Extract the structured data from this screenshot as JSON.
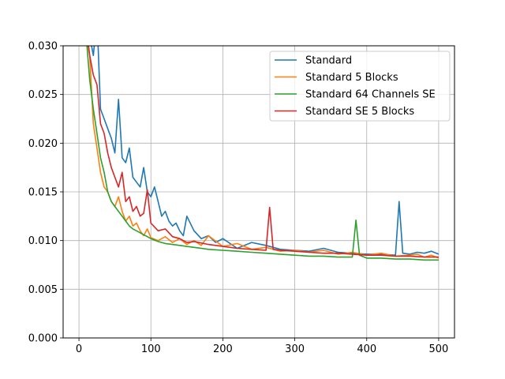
{
  "chart_data": {
    "type": "line",
    "title": "",
    "xlabel": "",
    "ylabel": "",
    "xlim": [
      -22,
      522
    ],
    "ylim": [
      0,
      0.03
    ],
    "xticks": [
      0,
      100,
      200,
      300,
      400,
      500
    ],
    "yticks": [
      0.0,
      0.005,
      0.01,
      0.015,
      0.02,
      0.025,
      0.03
    ],
    "xtick_labels": [
      "0",
      "100",
      "200",
      "300",
      "400",
      "500"
    ],
    "ytick_labels": [
      "0.000",
      "0.005",
      "0.010",
      "0.015",
      "0.020",
      "0.025",
      "0.030"
    ],
    "grid": true,
    "legend_position": "top-right",
    "series": [
      {
        "name": "Standard",
        "color": "#1f77b4",
        "x": [
          10,
          15,
          20,
          25,
          30,
          35,
          40,
          45,
          50,
          55,
          60,
          65,
          70,
          75,
          80,
          85,
          90,
          95,
          100,
          105,
          110,
          115,
          120,
          125,
          130,
          135,
          140,
          145,
          150,
          160,
          170,
          180,
          190,
          200,
          220,
          240,
          260,
          280,
          300,
          320,
          340,
          360,
          380,
          400,
          420,
          440,
          445,
          450,
          460,
          470,
          480,
          490,
          500
        ],
        "values": [
          0.034,
          0.031,
          0.029,
          0.033,
          0.0235,
          0.0225,
          0.0215,
          0.0205,
          0.019,
          0.0245,
          0.0185,
          0.018,
          0.0195,
          0.0165,
          0.016,
          0.0155,
          0.0175,
          0.015,
          0.0145,
          0.0155,
          0.014,
          0.0125,
          0.013,
          0.012,
          0.0115,
          0.0118,
          0.011,
          0.0105,
          0.0125,
          0.011,
          0.0102,
          0.0105,
          0.0098,
          0.0102,
          0.0092,
          0.0098,
          0.0095,
          0.0091,
          0.009,
          0.0089,
          0.0092,
          0.0088,
          0.0087,
          0.0086,
          0.0086,
          0.0085,
          0.014,
          0.0087,
          0.0086,
          0.0088,
          0.0087,
          0.0089,
          0.0086
        ]
      },
      {
        "name": "Standard 5 Blocks",
        "color": "#ff7f0e",
        "x": [
          10,
          15,
          20,
          25,
          30,
          35,
          40,
          45,
          50,
          55,
          60,
          65,
          70,
          75,
          80,
          85,
          90,
          95,
          100,
          110,
          120,
          130,
          140,
          150,
          160,
          170,
          180,
          200,
          220,
          240,
          260,
          280,
          300,
          320,
          340,
          360,
          380,
          400,
          420,
          440,
          460,
          470,
          480,
          490,
          500
        ],
        "values": [
          0.031,
          0.029,
          0.022,
          0.0195,
          0.017,
          0.0155,
          0.015,
          0.014,
          0.0135,
          0.0145,
          0.013,
          0.012,
          0.0125,
          0.0115,
          0.0118,
          0.011,
          0.0105,
          0.0112,
          0.0103,
          0.01,
          0.0104,
          0.0098,
          0.0102,
          0.0096,
          0.01,
          0.0095,
          0.0105,
          0.0094,
          0.0097,
          0.0091,
          0.0093,
          0.0089,
          0.009,
          0.0088,
          0.009,
          0.0086,
          0.0088,
          0.0085,
          0.0087,
          0.0084,
          0.0085,
          0.0086,
          0.0083,
          0.0085,
          0.0082
        ]
      },
      {
        "name": "Standard 64 Channels SE",
        "color": "#2ca02c",
        "x": [
          10,
          15,
          20,
          25,
          30,
          35,
          40,
          45,
          50,
          55,
          60,
          65,
          70,
          75,
          80,
          85,
          90,
          95,
          100,
          110,
          120,
          130,
          140,
          150,
          160,
          170,
          180,
          200,
          220,
          240,
          260,
          280,
          300,
          320,
          340,
          360,
          380,
          385,
          390,
          400,
          420,
          440,
          460,
          480,
          500
        ],
        "values": [
          0.031,
          0.0265,
          0.0235,
          0.021,
          0.0185,
          0.017,
          0.015,
          0.014,
          0.0135,
          0.013,
          0.0125,
          0.012,
          0.0115,
          0.0112,
          0.011,
          0.0108,
          0.0106,
          0.0104,
          0.0102,
          0.0099,
          0.0097,
          0.0096,
          0.0095,
          0.0094,
          0.0093,
          0.0092,
          0.0091,
          0.009,
          0.0089,
          0.0088,
          0.0087,
          0.0086,
          0.0085,
          0.0084,
          0.0084,
          0.0083,
          0.0083,
          0.0121,
          0.0085,
          0.0082,
          0.0082,
          0.0081,
          0.0081,
          0.008,
          0.008
        ]
      },
      {
        "name": "Standard SE 5 Blocks",
        "color": "#d62728",
        "x": [
          10,
          15,
          20,
          25,
          30,
          35,
          40,
          45,
          50,
          55,
          60,
          65,
          70,
          75,
          80,
          85,
          90,
          95,
          100,
          110,
          120,
          130,
          140,
          150,
          160,
          180,
          200,
          220,
          240,
          260,
          265,
          270,
          280,
          300,
          320,
          340,
          360,
          380,
          400,
          420,
          440,
          460,
          480,
          500
        ],
        "values": [
          0.032,
          0.029,
          0.027,
          0.026,
          0.022,
          0.021,
          0.019,
          0.0175,
          0.0165,
          0.0155,
          0.017,
          0.014,
          0.0145,
          0.013,
          0.0135,
          0.0125,
          0.0128,
          0.0152,
          0.0118,
          0.011,
          0.0112,
          0.0104,
          0.0102,
          0.0098,
          0.0099,
          0.0096,
          0.0094,
          0.0092,
          0.0091,
          0.009,
          0.0134,
          0.0091,
          0.009,
          0.0089,
          0.0088,
          0.0087,
          0.0087,
          0.0086,
          0.0085,
          0.0085,
          0.0084,
          0.0084,
          0.0083,
          0.0083
        ]
      }
    ]
  }
}
